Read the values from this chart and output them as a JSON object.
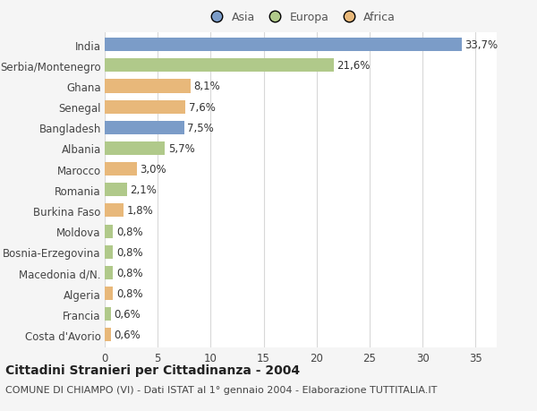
{
  "countries": [
    "India",
    "Serbia/Montenegro",
    "Ghana",
    "Senegal",
    "Bangladesh",
    "Albania",
    "Marocco",
    "Romania",
    "Burkina Faso",
    "Moldova",
    "Bosnia-Erzegovina",
    "Macedonia d/N.",
    "Algeria",
    "Francia",
    "Costa d'Avorio"
  ],
  "values": [
    33.7,
    21.6,
    8.1,
    7.6,
    7.5,
    5.7,
    3.0,
    2.1,
    1.8,
    0.8,
    0.8,
    0.8,
    0.8,
    0.6,
    0.6
  ],
  "labels": [
    "33,7%",
    "21,6%",
    "8,1%",
    "7,6%",
    "7,5%",
    "5,7%",
    "3,0%",
    "2,1%",
    "1,8%",
    "0,8%",
    "0,8%",
    "0,8%",
    "0,8%",
    "0,6%",
    "0,6%"
  ],
  "continents": [
    "Asia",
    "Europa",
    "Africa",
    "Africa",
    "Asia",
    "Europa",
    "Africa",
    "Europa",
    "Africa",
    "Europa",
    "Europa",
    "Europa",
    "Africa",
    "Europa",
    "Africa"
  ],
  "colors": {
    "Asia": "#7b9cc8",
    "Europa": "#b0c98a",
    "Africa": "#e8b87a"
  },
  "xlim": [
    0,
    37
  ],
  "xticks": [
    0,
    5,
    10,
    15,
    20,
    25,
    30,
    35
  ],
  "title": "Cittadini Stranieri per Cittadinanza - 2004",
  "subtitle": "COMUNE DI CHIAMPO (VI) - Dati ISTAT al 1° gennaio 2004 - Elaborazione TUTTITALIA.IT",
  "background_color": "#f5f5f5",
  "plot_bg_color": "#ffffff",
  "grid_color": "#d8d8d8",
  "title_fontsize": 10,
  "subtitle_fontsize": 8,
  "tick_fontsize": 8.5,
  "label_fontsize": 8.5,
  "legend_fontsize": 9,
  "bar_height": 0.65
}
